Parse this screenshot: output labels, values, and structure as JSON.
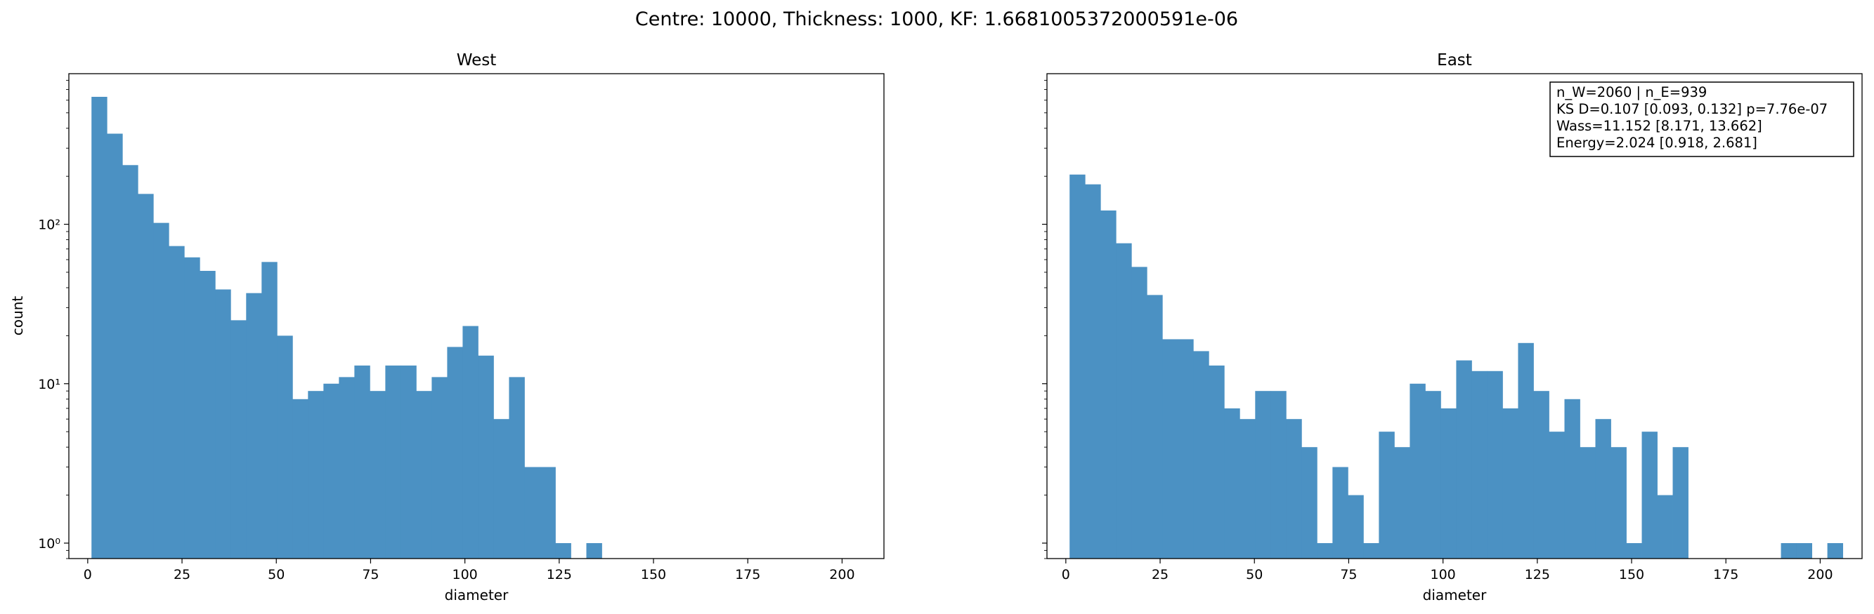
{
  "figure": {
    "suptitle": "Centre: 10000, Thickness: 1000, KF: 1.6681005372000591e-06"
  },
  "stats_box": [
    "n_W=2060 | n_E=939",
    "KS D=0.107 [0.093, 0.132]  p=7.76e-07",
    "Wass=11.152 [8.171, 13.662]",
    "Energy=2.024 [0.918, 2.681]"
  ],
  "colors": {
    "bar": "#4b91c3",
    "axes": "#000000",
    "background": "#ffffff"
  },
  "chart_data": [
    {
      "type": "bar",
      "title": "West",
      "xlabel": "diameter",
      "ylabel": "count",
      "yscale": "log",
      "xlim": [
        -5.0,
        211.1
      ],
      "ylim": [
        0.8,
        880
      ],
      "bin_width": 4.1,
      "bin_start": 1.0,
      "xticks": [
        0,
        25,
        50,
        75,
        100,
        125,
        150,
        175,
        200
      ],
      "xtick_labels": [
        "0",
        "25",
        "50",
        "75",
        "100",
        "125",
        "150",
        "175",
        "200"
      ],
      "yticks": [
        1,
        10,
        100
      ],
      "ytick_labels": [
        "10⁰",
        "10¹",
        "10²"
      ],
      "grid": false,
      "values": [
        630,
        370,
        235,
        155,
        102,
        73,
        62,
        51,
        39,
        25,
        37,
        58,
        20,
        8,
        9,
        10,
        11,
        13,
        9,
        13,
        13,
        9,
        11,
        17,
        23,
        15,
        6,
        11,
        3,
        3,
        1,
        0,
        1,
        0,
        0,
        0,
        0,
        0,
        0,
        0,
        0,
        0,
        0,
        0,
        0,
        0,
        0,
        0,
        0
      ]
    },
    {
      "type": "bar",
      "title": "East",
      "xlabel": "diameter",
      "ylabel": "",
      "yscale": "log",
      "xlim": [
        -5.0,
        211.1
      ],
      "ylim": [
        0.8,
        880
      ],
      "bin_width": 4.1,
      "bin_start": 1.0,
      "xticks": [
        0,
        25,
        50,
        75,
        100,
        125,
        150,
        175,
        200
      ],
      "xtick_labels": [
        "0",
        "25",
        "50",
        "75",
        "100",
        "125",
        "150",
        "175",
        "200"
      ],
      "yticks": [
        1,
        10,
        100
      ],
      "ytick_labels": [
        "",
        "",
        ""
      ],
      "grid": false,
      "values": [
        205,
        178,
        122,
        76,
        54,
        36,
        19,
        19,
        16,
        13,
        7,
        6,
        9,
        9,
        6,
        4,
        1,
        3,
        2,
        1,
        5,
        4,
        10,
        9,
        7,
        14,
        12,
        12,
        7,
        18,
        9,
        5,
        8,
        4,
        6,
        4,
        1,
        5,
        2,
        4,
        0,
        0,
        0,
        0,
        0,
        0,
        1,
        1,
        0,
        1
      ]
    }
  ]
}
